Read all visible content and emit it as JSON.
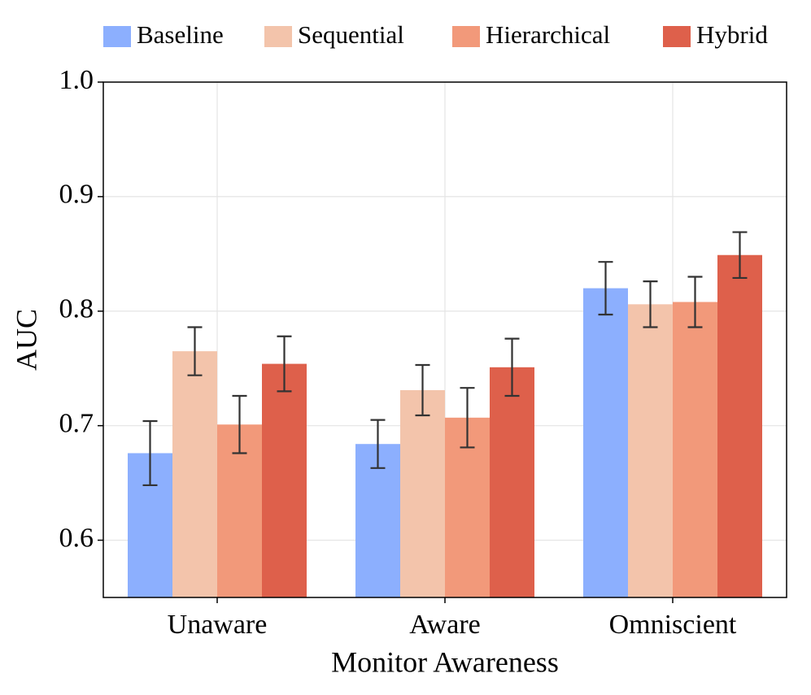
{
  "chart_data": {
    "type": "bar",
    "x_label": "Monitor Awareness",
    "y_label": "AUC",
    "categories": [
      "Unaware",
      "Aware",
      "Omniscient"
    ],
    "series": [
      {
        "name": "Baseline",
        "color": "#8caffe",
        "values": [
          0.676,
          0.684,
          0.82
        ],
        "errors": [
          0.028,
          0.021,
          0.023
        ]
      },
      {
        "name": "Sequential",
        "color": "#f3c4ab",
        "values": [
          0.765,
          0.731,
          0.806
        ],
        "errors": [
          0.021,
          0.022,
          0.02
        ]
      },
      {
        "name": "Hierarchical",
        "color": "#f2997a",
        "values": [
          0.701,
          0.707,
          0.808
        ],
        "errors": [
          0.025,
          0.026,
          0.022
        ]
      },
      {
        "name": "Hybrid",
        "color": "#de604b",
        "values": [
          0.754,
          0.751,
          0.849
        ],
        "errors": [
          0.024,
          0.025,
          0.02
        ]
      }
    ],
    "ylim": [
      0.55,
      1.0
    ],
    "yticks": [
      0.6,
      0.7,
      0.8,
      0.9,
      {
        "value": 1,
        "label": "1.0"
      }
    ],
    "grid": true,
    "legend": "top"
  }
}
